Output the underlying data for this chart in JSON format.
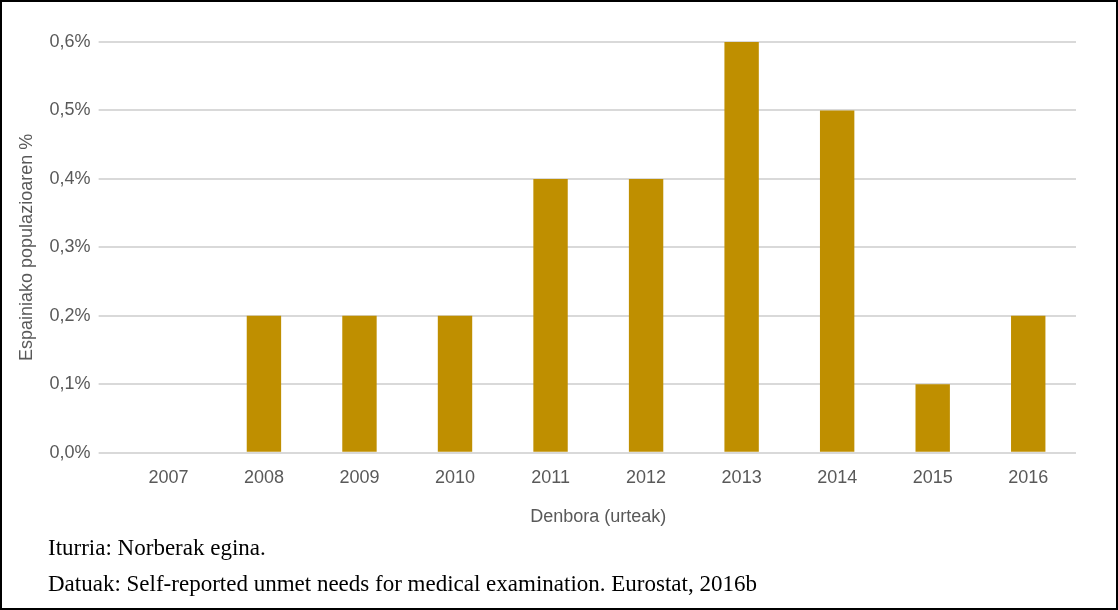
{
  "chart_data": {
    "type": "bar",
    "xlabel": "Denbora (urteak)",
    "ylabel": "Espainiako populazioaren %",
    "categories": [
      "2007",
      "2008",
      "2009",
      "2010",
      "2011",
      "2012",
      "2013",
      "2014",
      "2015",
      "2016"
    ],
    "values": [
      0,
      0.2,
      0.2,
      0.2,
      0.4,
      0.4,
      0.6,
      0.5,
      0.1,
      0.2
    ],
    "color": "#bf8f00",
    "ylim": [
      0,
      0.6
    ],
    "yticks": [
      {
        "value": 0,
        "label": "0,0%"
      },
      {
        "value": 0.1,
        "label": "0,1%"
      },
      {
        "value": 0.2,
        "label": "0,2%"
      },
      {
        "value": 0.3,
        "label": "0,3%"
      },
      {
        "value": 0.4,
        "label": "0,4%"
      },
      {
        "value": 0.5,
        "label": "0,5%"
      },
      {
        "value": 0.6,
        "label": "0,6%"
      }
    ],
    "grid": "y",
    "legend": false,
    "annotations": [
      "Iturria: Norberak egina.",
      "Datuak: Self-reported unmet needs for medical examination. Eurostat, 2016b"
    ]
  }
}
